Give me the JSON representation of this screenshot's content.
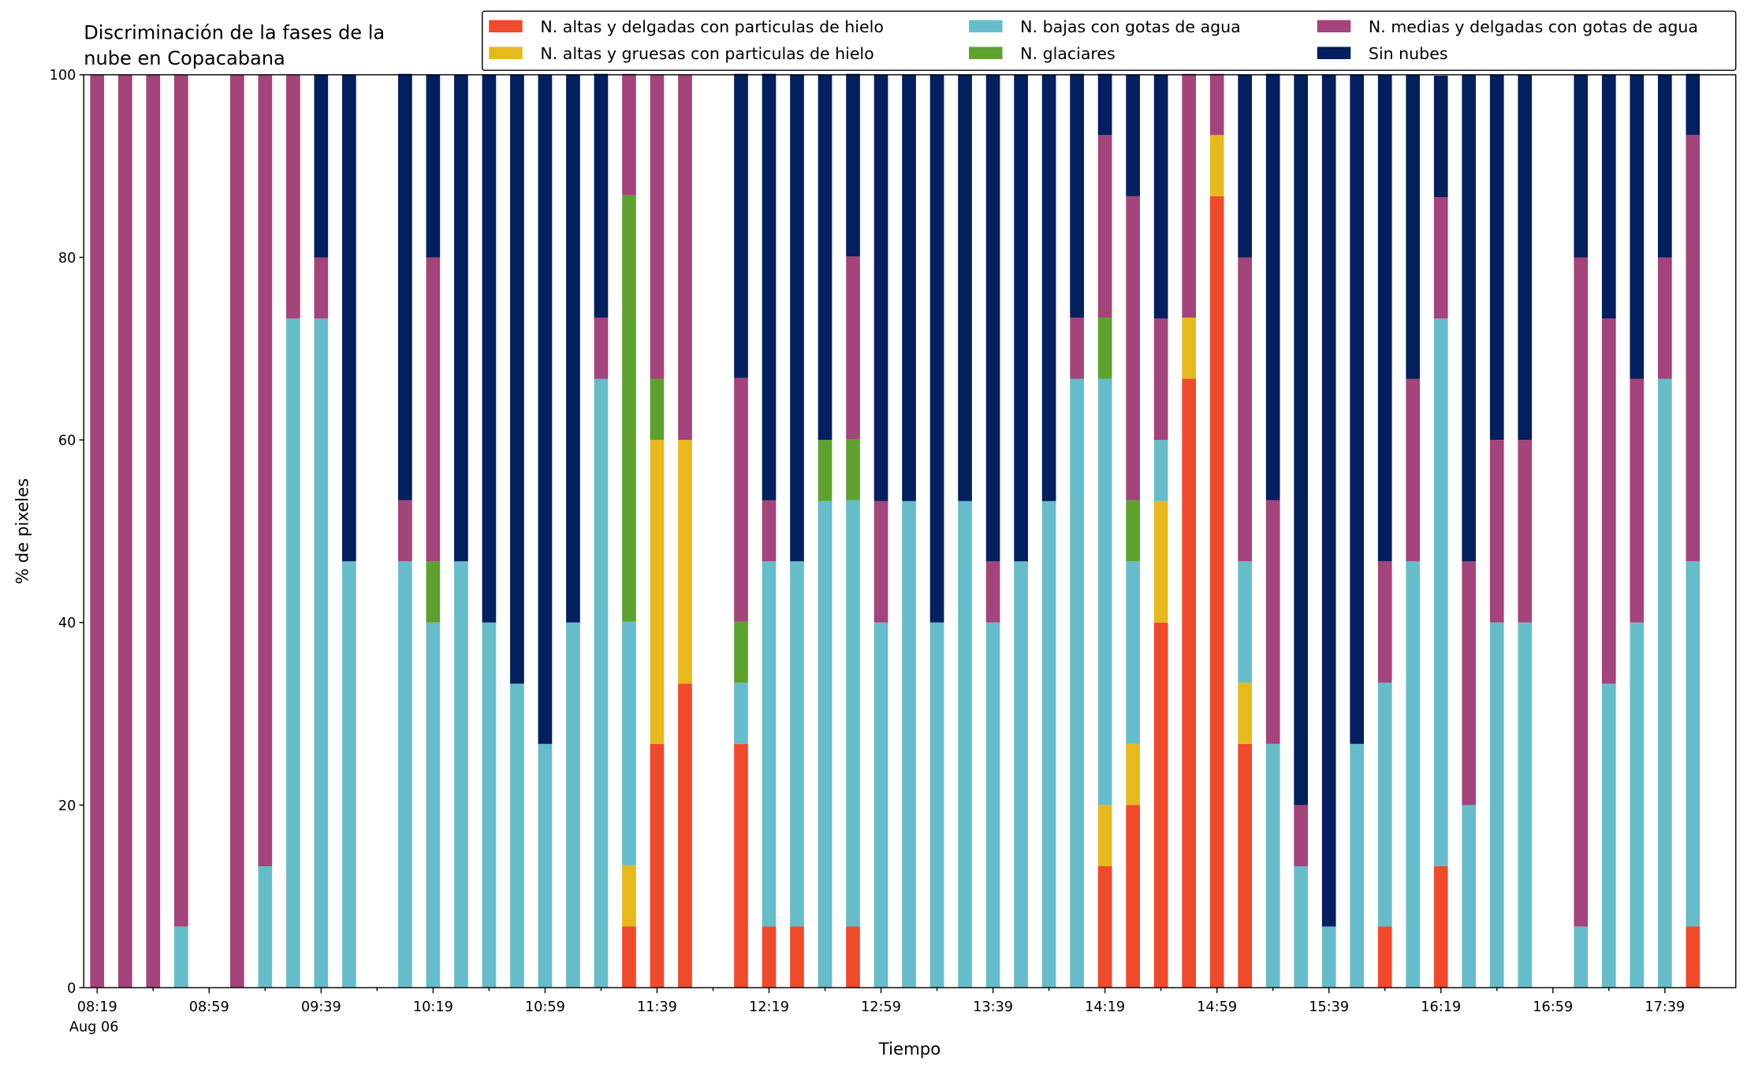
{
  "chart_data": {
    "type": "bar",
    "stacked": true,
    "title": [
      "Discriminación de la fases de la",
      "nube en Copacabana"
    ],
    "x_label": "Tiempo",
    "y_label": "% de pixeles",
    "date_label": "Aug 06",
    "categories": [
      "08:19",
      null,
      null,
      null,
      "08:59",
      null,
      null,
      null,
      "09:39",
      null,
      null,
      null,
      "10:19",
      null,
      null,
      null,
      "10:59",
      null,
      null,
      null,
      "11:39",
      null,
      null,
      null,
      "12:19",
      null,
      null,
      null,
      "12:59",
      null,
      null,
      null,
      "13:39",
      null,
      null,
      null,
      "14:19",
      null,
      null,
      null,
      "14:59",
      null,
      null,
      null,
      "15:39",
      null,
      null,
      null,
      "16:19",
      null,
      null,
      null,
      "16:59",
      null,
      null,
      null,
      "17:39",
      null
    ],
    "ylim": [
      0,
      100
    ],
    "yticks": [
      0,
      20,
      40,
      60,
      80,
      100
    ],
    "legend": "top-right",
    "series": [
      {
        "name": "N. altas y delgadas con particulas de hielo",
        "color": "#ef4a2c",
        "values": [
          0,
          0,
          0,
          0,
          null,
          0,
          0,
          0,
          0,
          0,
          null,
          0,
          0,
          0,
          0,
          0,
          0,
          0,
          0,
          6.7,
          26.7,
          33.3,
          null,
          26.7,
          6.7,
          6.7,
          0,
          6.7,
          0,
          0,
          0,
          0,
          0,
          0,
          0,
          0,
          13.3,
          20,
          40,
          66.7,
          86.7,
          26.7,
          0,
          0,
          0,
          0,
          6.7,
          0,
          13.3,
          0,
          0,
          0,
          null,
          0,
          0,
          0,
          0,
          6.7
        ]
      },
      {
        "name": "N. altas y gruesas con particulas de hielo",
        "color": "#e6b91e",
        "values": [
          0,
          0,
          0,
          0,
          null,
          0,
          0,
          0,
          0,
          0,
          null,
          0,
          0,
          0,
          0,
          0,
          0,
          0,
          0,
          6.7,
          33.3,
          26.7,
          null,
          0,
          0,
          0,
          0,
          0,
          0,
          0,
          0,
          0,
          0,
          0,
          0,
          0,
          6.7,
          6.7,
          13.3,
          6.7,
          6.7,
          6.7,
          0,
          0,
          0,
          0,
          0,
          0,
          0,
          0,
          0,
          0,
          null,
          0,
          0,
          0,
          0,
          0
        ]
      },
      {
        "name": "N. bajas con gotas de agua",
        "color": "#66bdc9",
        "values": [
          0,
          0,
          0,
          6.7,
          null,
          0,
          13.3,
          73.3,
          73.3,
          46.7,
          null,
          46.7,
          40,
          46.7,
          40,
          33.3,
          26.7,
          40,
          66.7,
          26.7,
          0,
          0,
          null,
          6.7,
          40,
          40,
          53.3,
          46.7,
          40,
          53.3,
          40,
          53.3,
          40,
          46.7,
          53.3,
          66.7,
          46.7,
          20,
          6.7,
          0,
          0,
          13.3,
          26.7,
          13.3,
          6.7,
          26.7,
          26.7,
          46.7,
          60,
          20,
          40,
          40,
          null,
          6.7,
          33.3,
          40,
          66.7,
          40
        ]
      },
      {
        "name": "N. glaciares",
        "color": "#5fa12f",
        "values": [
          0,
          0,
          0,
          0,
          null,
          0,
          0,
          0,
          0,
          0,
          null,
          0,
          6.7,
          0,
          0,
          0,
          0,
          0,
          0,
          46.7,
          6.7,
          0,
          null,
          6.7,
          0,
          0,
          6.7,
          6.7,
          0,
          0,
          0,
          0,
          0,
          0,
          0,
          0,
          6.7,
          6.7,
          0,
          0,
          0,
          0,
          0,
          0,
          0,
          0,
          0,
          0,
          0,
          0,
          0,
          0,
          null,
          0,
          0,
          0,
          0,
          0
        ]
      },
      {
        "name": "N. medias y delgadas con gotas de agua",
        "color": "#a3447a",
        "values": [
          100,
          100,
          100,
          93.3,
          null,
          100,
          86.7,
          26.7,
          6.7,
          0,
          null,
          6.7,
          33.3,
          0,
          0,
          0,
          0,
          0,
          6.7,
          13.3,
          33.3,
          40,
          null,
          26.7,
          6.7,
          0,
          0,
          20,
          13.3,
          0,
          0,
          0,
          6.7,
          0,
          0,
          6.7,
          20,
          33.3,
          13.3,
          26.7,
          6.7,
          33.3,
          26.7,
          6.7,
          0,
          0,
          13.3,
          20,
          13.3,
          26.7,
          20,
          20,
          null,
          73.3,
          40,
          26.7,
          13.3,
          46.7
        ]
      },
      {
        "name": "Sin nubes",
        "color": "#031f5e",
        "values": [
          0,
          0,
          0,
          0,
          null,
          0,
          0,
          0,
          20,
          53.3,
          null,
          46.7,
          20,
          53.3,
          60,
          66.7,
          73.3,
          60,
          26.7,
          0,
          0,
          0,
          null,
          33.3,
          46.7,
          53.3,
          40,
          20,
          46.7,
          46.7,
          60,
          46.7,
          53.3,
          53.3,
          46.7,
          26.7,
          6.7,
          13.3,
          26.7,
          0,
          0,
          20,
          46.7,
          80,
          93.3,
          73.3,
          53.3,
          33.3,
          13.3,
          53.3,
          40,
          40,
          null,
          20,
          26.7,
          33.3,
          20,
          6.7
        ]
      }
    ]
  }
}
